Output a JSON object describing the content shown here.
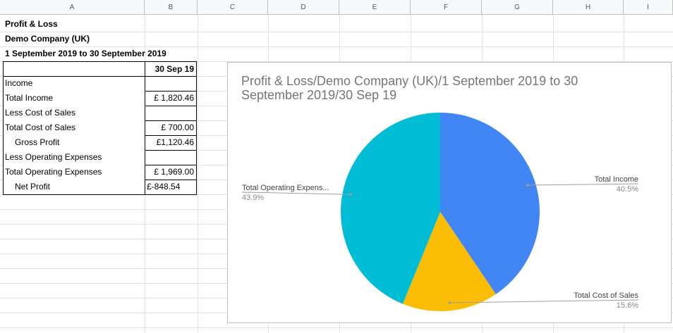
{
  "columns": [
    "A",
    "B",
    "C",
    "D",
    "E",
    "F",
    "G",
    "H",
    "I"
  ],
  "report": {
    "title": "Profit & Loss",
    "company": "Demo Company (UK)",
    "period": "1 September 2019 to 30 September 2019",
    "col_header": "30 Sep 19",
    "rows": [
      {
        "label": "Income",
        "value": ""
      },
      {
        "label": "Total Income",
        "value": "£ 1,820.46"
      },
      {
        "label": "Less Cost of Sales",
        "value": ""
      },
      {
        "label": "Total Cost of Sales",
        "value": "£ 700.00"
      },
      {
        "label": "Gross Profit",
        "value": "£1,120.46"
      },
      {
        "label": "Less Operating Expenses",
        "value": ""
      },
      {
        "label": "Total Operating Expenses",
        "value": "£ 1,969.00"
      },
      {
        "label": "Net Profit",
        "value": "£-848.54"
      }
    ]
  },
  "chart_data": {
    "type": "pie",
    "title": "Profit & Loss/Demo Company (UK)/1 September 2019 to 30 September 2019/30 Sep 19",
    "slices": [
      {
        "label": "Total Income",
        "value": 1820.46,
        "pct_label": "40.5%",
        "color": "#4285f4"
      },
      {
        "label": "Total Cost of Sales",
        "value": 700.0,
        "pct_label": "15.6%",
        "color": "#fbbc04"
      },
      {
        "label": "Total Operating Expens...",
        "value": 1969.0,
        "pct_label": "43.9%",
        "color": "#00bcd4"
      }
    ]
  }
}
